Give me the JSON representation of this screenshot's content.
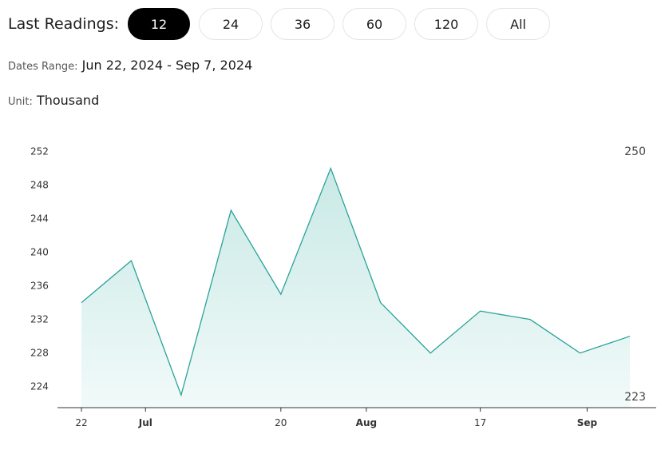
{
  "header": {
    "label": "Last Readings:",
    "options": [
      {
        "label": "12",
        "active": true
      },
      {
        "label": "24",
        "active": false
      },
      {
        "label": "36",
        "active": false
      },
      {
        "label": "60",
        "active": false
      },
      {
        "label": "120",
        "active": false
      },
      {
        "label": "All",
        "active": false
      }
    ]
  },
  "dates": {
    "key": "Dates Range:",
    "value": "Jun 22, 2024 - Sep 7, 2024"
  },
  "unit": {
    "key": "Unit:",
    "value": "Thousand"
  },
  "colors": {
    "line": "#2aa39a",
    "fill_top": "#c9e9e6",
    "fill_bottom": "#f1faf9",
    "axis": "#333333"
  },
  "chart_data": {
    "type": "area",
    "title": "",
    "xlabel": "",
    "ylabel": "",
    "x": [
      "2024-06-22",
      "2024-06-29",
      "2024-07-06",
      "2024-07-13",
      "2024-07-20",
      "2024-07-27",
      "2024-08-03",
      "2024-08-10",
      "2024-08-17",
      "2024-08-24",
      "2024-08-31",
      "2024-09-07"
    ],
    "values": [
      234,
      239,
      223,
      245,
      235,
      250,
      234,
      228,
      233,
      232,
      228,
      230
    ],
    "ylim": [
      221.5,
      253
    ],
    "y_ticks": [
      224,
      228,
      232,
      236,
      240,
      244,
      248,
      252
    ],
    "x_tick_labels": [
      {
        "date": "2024-06-22",
        "label": "22",
        "bold": false
      },
      {
        "date": "2024-07-01",
        "label": "Jul",
        "bold": true
      },
      {
        "date": "2024-07-20",
        "label": "20",
        "bold": false
      },
      {
        "date": "2024-08-01",
        "label": "Aug",
        "bold": true
      },
      {
        "date": "2024-08-17",
        "label": "17",
        "bold": false
      },
      {
        "date": "2024-09-01",
        "label": "Sep",
        "bold": true
      }
    ],
    "max_label": "250",
    "min_label": "223",
    "grid": false,
    "legend": "none"
  }
}
